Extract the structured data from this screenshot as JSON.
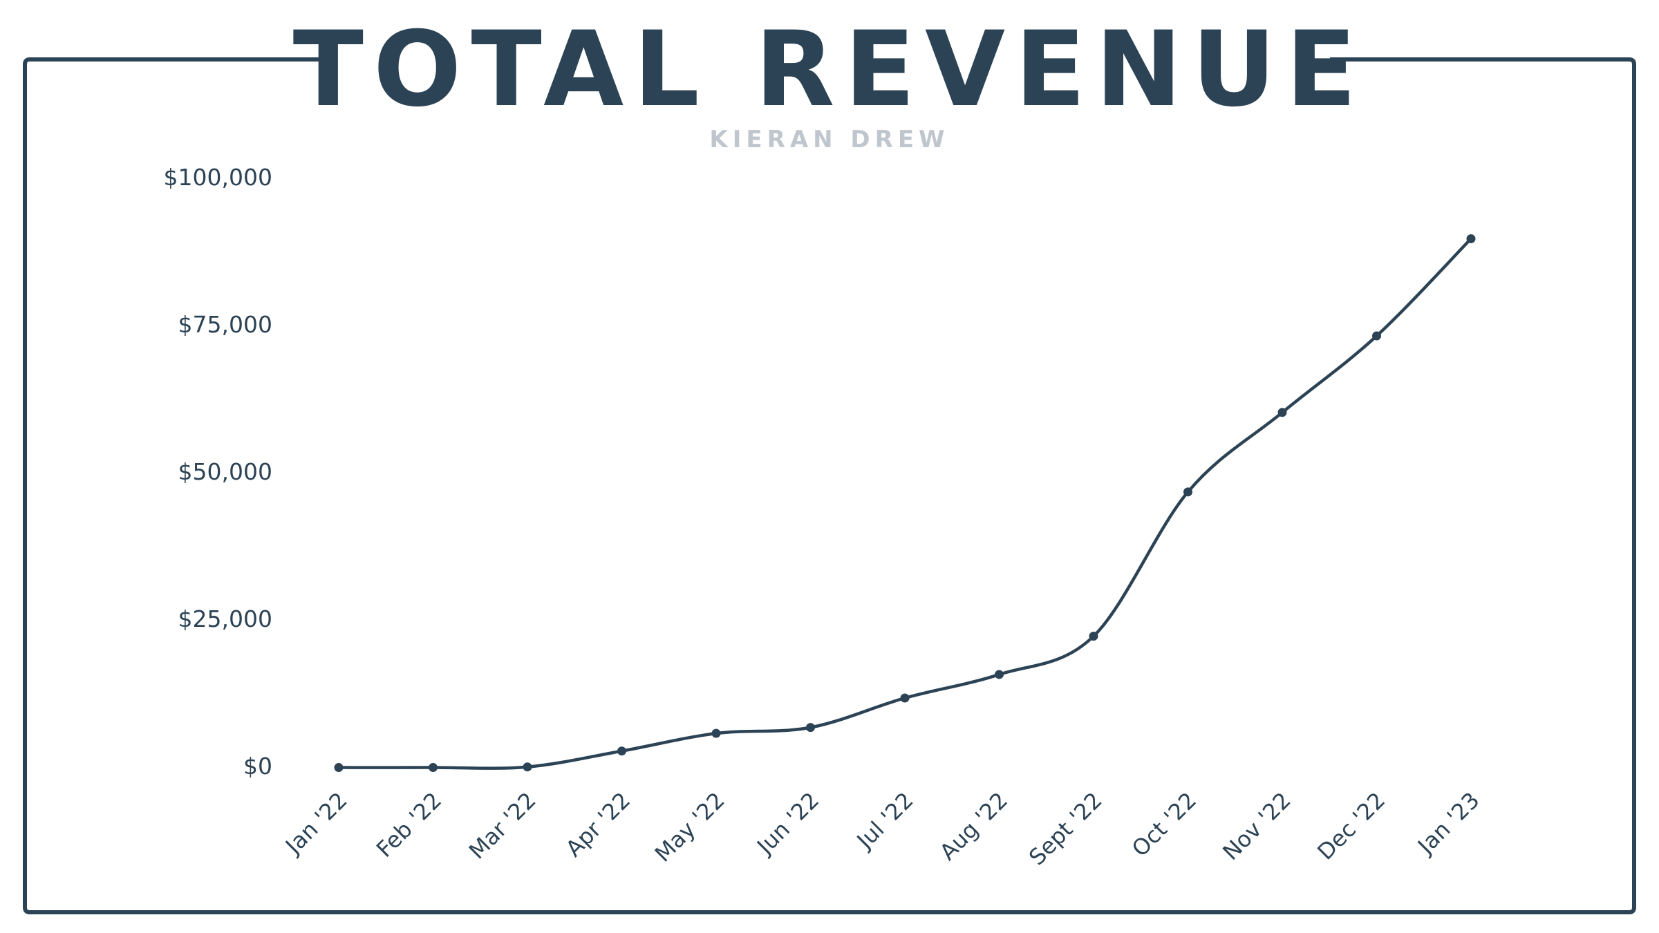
{
  "colors": {
    "primary": "#2c4355",
    "subtitle": "#bfc6cd",
    "background": "#ffffff"
  },
  "chart_data": {
    "type": "line",
    "title": "TOTAL REVENUE",
    "subtitle": "KIERAN DREW",
    "xlabel": "",
    "ylabel": "",
    "x": [
      "Jan '22",
      "Feb '22",
      "Mar '22",
      "Apr '22",
      "May '22",
      "Jun '22",
      "Jul '22",
      "Aug '22",
      "Sept '22",
      "Oct '22",
      "Nov '22",
      "Dec '22",
      "Jan '23"
    ],
    "series": [
      {
        "values": [
          -300,
          -300,
          -200,
          2500,
          5500,
          6500,
          11500,
          15500,
          22000,
          46500,
          60000,
          73000,
          89500
        ]
      }
    ],
    "ylim": [
      0,
      100000
    ],
    "yticks": [
      {
        "value": 100000,
        "label": "$100,000"
      },
      {
        "value": 75000,
        "label": "$75,000"
      },
      {
        "value": 50000,
        "label": "$50,000"
      },
      {
        "value": 25000,
        "label": "$25,000"
      },
      {
        "value": 0,
        "label": "$0"
      }
    ],
    "grid": false,
    "legend": "none",
    "smooth": true
  }
}
